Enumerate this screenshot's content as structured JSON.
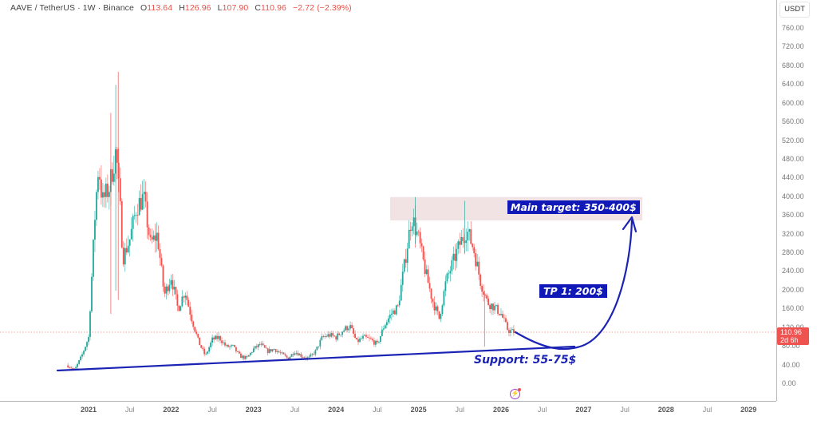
{
  "header": {
    "symbol": "AAVE / TetherUS · 1W · Binance",
    "open_label": "O",
    "open": "113.64",
    "high_label": "H",
    "high": "126.96",
    "low_label": "L",
    "low": "107.90",
    "close_label": "C",
    "close": "110.96",
    "change": "−2.72 (−2.39%)"
  },
  "price_axis": {
    "unit": "USDT",
    "ticks": [
      "760.00",
      "720.00",
      "680.00",
      "640.00",
      "600.00",
      "560.00",
      "520.00",
      "480.00",
      "440.00",
      "400.00",
      "360.00",
      "320.00",
      "280.00",
      "240.00",
      "200.00",
      "160.00",
      "120.00",
      "80.00",
      "40.00",
      "0.00"
    ],
    "current_price": "110.96",
    "countdown": "2d 6h"
  },
  "time_axis": {
    "ticks": [
      {
        "label": "2021",
        "year": true
      },
      {
        "label": "Jul",
        "year": false
      },
      {
        "label": "2022",
        "year": true
      },
      {
        "label": "Jul",
        "year": false
      },
      {
        "label": "2023",
        "year": true
      },
      {
        "label": "Jul",
        "year": false
      },
      {
        "label": "2024",
        "year": true
      },
      {
        "label": "Jul",
        "year": false
      },
      {
        "label": "2025",
        "year": true
      },
      {
        "label": "Jul",
        "year": false
      },
      {
        "label": "2026",
        "year": true
      },
      {
        "label": "Jul",
        "year": false
      },
      {
        "label": "2027",
        "year": true
      },
      {
        "label": "Jul",
        "year": false
      },
      {
        "label": "2028",
        "year": true
      },
      {
        "label": "Jul",
        "year": false
      },
      {
        "label": "2029",
        "year": true
      }
    ]
  },
  "annotations": {
    "main_target": "Main target: 350-400$",
    "tp1": "TP 1: 200$",
    "support": "Support: 55-75$",
    "target_zone": {
      "low": 350,
      "high": 400,
      "x_start": "2024-10",
      "x_end": "2027-05"
    },
    "support_line": {
      "from": {
        "x": "2020-10",
        "y": 28
      },
      "to": {
        "x": "2026-11",
        "y": 80
      }
    }
  },
  "colors": {
    "up": "#26a69a",
    "down": "#ef5350",
    "annotation_blue": "#1b23b4",
    "zone": "#efe0e0",
    "last_price_line": "#ef5350"
  },
  "chart_data": {
    "type": "candlestick",
    "title": "AAVE / TetherUS · 1W · Binance",
    "xlabel": "",
    "ylabel": "USDT",
    "ylim": [
      0,
      780
    ],
    "x_range": [
      "2020-06",
      "2029-06"
    ],
    "grid": false,
    "last": {
      "open": 113.64,
      "high": 126.96,
      "low": 107.9,
      "close": 110.96,
      "change": -2.72,
      "change_pct": -2.39
    },
    "price_path": [
      [
        "2020-10",
        40
      ],
      [
        "2020-11",
        30
      ],
      [
        "2020-12",
        60
      ],
      [
        "2021-01",
        100
      ],
      [
        "2021-02",
        380
      ],
      [
        "2021-02-15",
        470
      ],
      [
        "2021-03",
        390
      ],
      [
        "2021-04",
        420
      ],
      [
        "2021-05",
        500
      ],
      [
        "2021-05-20",
        370
      ],
      [
        "2021-06",
        270
      ],
      [
        "2021-07",
        310
      ],
      [
        "2021-08",
        380
      ],
      [
        "2021-09",
        400
      ],
      [
        "2021-10",
        300
      ],
      [
        "2021-11",
        320
      ],
      [
        "2021-12",
        190
      ],
      [
        "2022-01",
        230
      ],
      [
        "2022-02",
        160
      ],
      [
        "2022-03",
        200
      ],
      [
        "2022-04",
        140
      ],
      [
        "2022-05",
        90
      ],
      [
        "2022-06",
        60
      ],
      [
        "2022-07",
        95
      ],
      [
        "2022-08",
        100
      ],
      [
        "2022-09",
        80
      ],
      [
        "2022-10",
        80
      ],
      [
        "2022-11",
        60
      ],
      [
        "2022-12",
        55
      ],
      [
        "2023-01",
        75
      ],
      [
        "2023-02",
        85
      ],
      [
        "2023-03",
        70
      ],
      [
        "2023-04",
        75
      ],
      [
        "2023-05",
        65
      ],
      [
        "2023-06",
        55
      ],
      [
        "2023-07",
        70
      ],
      [
        "2023-08",
        60
      ],
      [
        "2023-09",
        55
      ],
      [
        "2023-10",
        70
      ],
      [
        "2023-11",
        100
      ],
      [
        "2023-12",
        105
      ],
      [
        "2024-01",
        100
      ],
      [
        "2024-02",
        115
      ],
      [
        "2024-03",
        125
      ],
      [
        "2024-04",
        90
      ],
      [
        "2024-05",
        100
      ],
      [
        "2024-06",
        95
      ],
      [
        "2024-07",
        85
      ],
      [
        "2024-08",
        125
      ],
      [
        "2024-09",
        150
      ],
      [
        "2024-10",
        165
      ],
      [
        "2024-11",
        260
      ],
      [
        "2024-12",
        360
      ],
      [
        "2025-01",
        310
      ],
      [
        "2025-02",
        240
      ],
      [
        "2025-03",
        180
      ],
      [
        "2025-04",
        140
      ],
      [
        "2025-05",
        220
      ],
      [
        "2025-06",
        260
      ],
      [
        "2025-07",
        300
      ],
      [
        "2025-08",
        330
      ],
      [
        "2025-09",
        290
      ],
      [
        "2025-10",
        220
      ],
      [
        "2025-11",
        175
      ],
      [
        "2025-12",
        165
      ],
      [
        "2026-01",
        150
      ],
      [
        "2026-02",
        115
      ],
      [
        "2026-03",
        111
      ]
    ],
    "projection": {
      "path": [
        [
          "2026-03",
          111
        ],
        [
          "2026-09",
          75
        ],
        [
          "2027-04",
          180
        ],
        [
          "2027-05",
          350
        ]
      ],
      "targets": [
        {
          "label": "TP 1",
          "value": 200
        },
        {
          "label": "Main target",
          "low": 350,
          "high": 400
        }
      ],
      "support": {
        "low": 55,
        "high": 75
      }
    }
  }
}
